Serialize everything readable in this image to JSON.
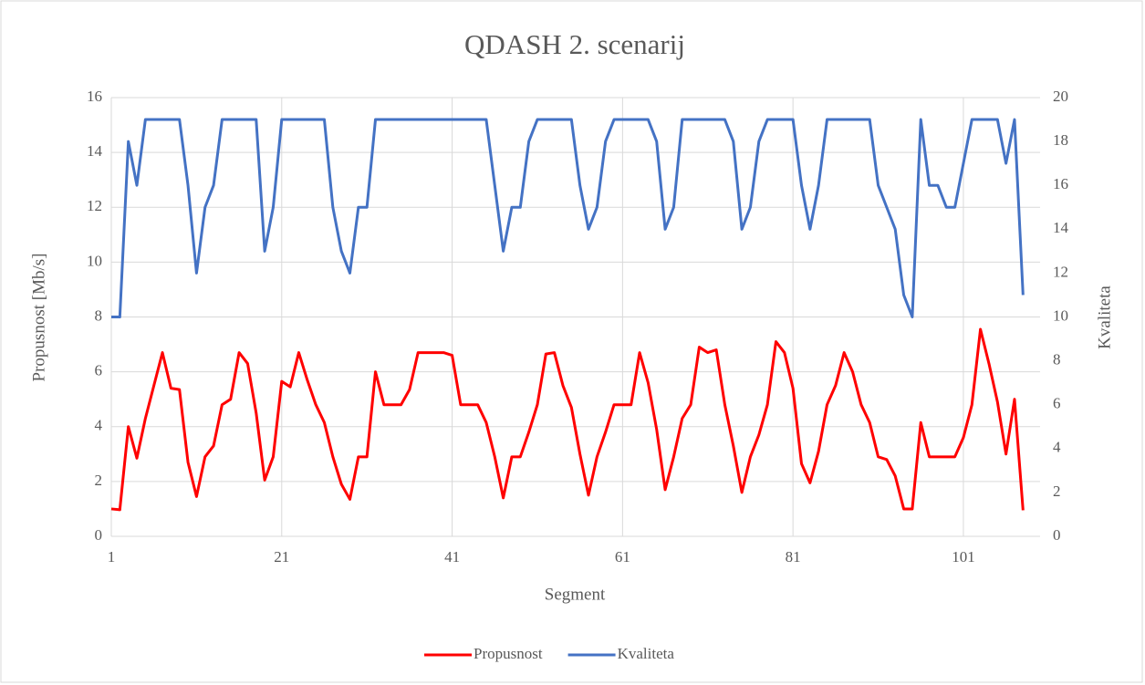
{
  "chart_data": {
    "type": "line",
    "title": "QDASH 2. scenarij",
    "x_label": "Segment",
    "y_label": "Propusnost [Mb/s]",
    "y2_label": "Kvaliteta",
    "x": [
      1,
      2,
      3,
      4,
      5,
      6,
      7,
      8,
      9,
      10,
      11,
      12,
      13,
      14,
      15,
      16,
      17,
      18,
      19,
      20,
      21,
      22,
      23,
      24,
      25,
      26,
      27,
      28,
      29,
      30,
      31,
      32,
      33,
      34,
      35,
      36,
      37,
      38,
      39,
      40,
      41,
      42,
      43,
      44,
      45,
      46,
      47,
      48,
      49,
      50,
      51,
      52,
      53,
      54,
      55,
      56,
      57,
      58,
      59,
      60,
      61,
      62,
      63,
      64,
      65,
      66,
      67,
      68,
      69,
      70,
      71,
      72,
      73,
      74,
      75,
      76,
      77,
      78,
      79,
      80,
      81,
      82,
      83,
      84,
      85,
      86,
      87,
      88,
      89,
      90,
      91,
      92,
      93,
      94,
      95,
      96,
      97,
      98,
      99,
      100,
      101,
      102,
      103,
      104,
      105,
      106,
      107,
      108
    ],
    "xlim": [
      1,
      110
    ],
    "xticks": [
      1,
      21,
      41,
      61,
      81,
      101
    ],
    "ylim": [
      0,
      16
    ],
    "yticks": [
      0,
      2,
      4,
      6,
      8,
      10,
      12,
      14,
      16
    ],
    "y2lim": [
      0,
      20
    ],
    "y2ticks": [
      0,
      2,
      4,
      6,
      8,
      10,
      12,
      14,
      16,
      18,
      20
    ],
    "grid": true,
    "legend": "bottom",
    "series": [
      {
        "name": "Propusnost",
        "color": "#ff0000",
        "values": [
          1.0,
          0.97,
          4.0,
          2.85,
          4.3,
          5.5,
          6.7,
          5.4,
          5.35,
          2.7,
          1.45,
          2.9,
          3.3,
          4.8,
          5.0,
          6.7,
          6.3,
          4.5,
          2.05,
          2.9,
          5.65,
          5.45,
          6.7,
          5.7,
          4.8,
          4.15,
          2.9,
          1.9,
          1.35,
          2.9,
          2.9,
          6.0,
          4.8,
          4.8,
          4.8,
          5.35,
          6.7,
          6.7,
          6.7,
          6.7,
          6.6,
          4.8,
          4.8,
          4.8,
          4.15,
          2.9,
          1.4,
          2.9,
          2.9,
          3.8,
          4.8,
          6.65,
          6.7,
          5.5,
          4.7,
          3.0,
          1.5,
          2.9,
          3.8,
          4.8,
          4.8,
          4.8,
          6.7,
          5.6,
          3.9,
          1.7,
          2.9,
          4.3,
          4.8,
          6.9,
          6.7,
          6.8,
          4.8,
          3.3,
          1.6,
          2.9,
          3.7,
          4.8,
          7.1,
          6.7,
          5.4,
          2.65,
          1.95,
          3.1,
          4.8,
          5.5,
          6.7,
          6.0,
          4.8,
          4.15,
          2.9,
          2.8,
          2.2,
          1.0,
          1.0,
          4.15,
          2.9,
          2.9,
          2.9,
          2.9,
          3.6,
          4.8,
          7.55,
          6.3,
          4.9,
          3.0,
          5.0,
          0.95
        ]
      },
      {
        "name": "Kvaliteta",
        "color": "#4472c4",
        "axis": "y2",
        "values": [
          10,
          10,
          18,
          16,
          19,
          19,
          19,
          19,
          19,
          16,
          12,
          15,
          16,
          19,
          19,
          19,
          19,
          19,
          13,
          15,
          19,
          19,
          19,
          19,
          19,
          19,
          15,
          13,
          12,
          15,
          15,
          19,
          19,
          19,
          19,
          19,
          19,
          19,
          19,
          19,
          19,
          19,
          19,
          19,
          19,
          16,
          13,
          15,
          15,
          18,
          19,
          19,
          19,
          19,
          19,
          16,
          14,
          15,
          18,
          19,
          19,
          19,
          19,
          19,
          18,
          14,
          15,
          19,
          19,
          19,
          19,
          19,
          19,
          18,
          14,
          15,
          18,
          19,
          19,
          19,
          19,
          16,
          14,
          16,
          19,
          19,
          19,
          19,
          19,
          19,
          16,
          15,
          14,
          11,
          10,
          19,
          16,
          16,
          15,
          15,
          17,
          19,
          19,
          19,
          19,
          17,
          19,
          11
        ]
      }
    ]
  }
}
